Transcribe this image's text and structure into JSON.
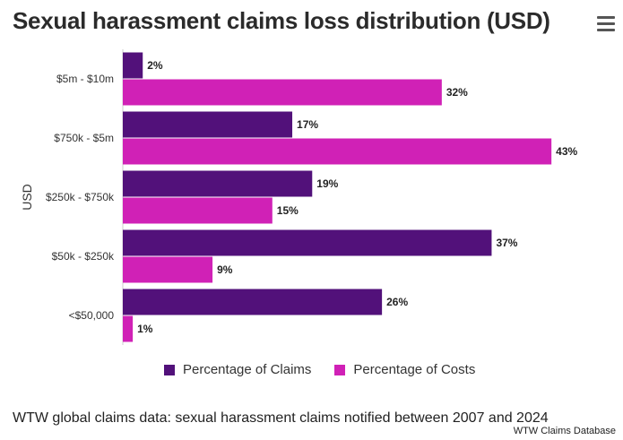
{
  "chart_data": {
    "type": "bar",
    "orientation": "horizontal",
    "title": "Sexual harassment claims loss distribution (USD)",
    "ylabel": "USD",
    "xlabel": "",
    "categories": [
      "$5m - $10m",
      "$750k - $5m",
      "$250k - $750k",
      "$50k - $250k",
      "<$50,000"
    ],
    "series": [
      {
        "name": "Percentage of Claims",
        "values": [
          2,
          17,
          19,
          37,
          26
        ],
        "color": "#52117a"
      },
      {
        "name": "Percentage of Costs",
        "values": [
          32,
          43,
          15,
          9,
          1
        ],
        "color": "#d021b6"
      }
    ],
    "value_suffix": "%",
    "xlim": [
      0,
      50
    ],
    "legend_position": "bottom",
    "grid": false
  },
  "caption": "WTW global claims data: sexual harassment claims notified between 2007 and 2024",
  "credit": "WTW Claims Database",
  "menu_icon": "hamburger-menu-icon"
}
